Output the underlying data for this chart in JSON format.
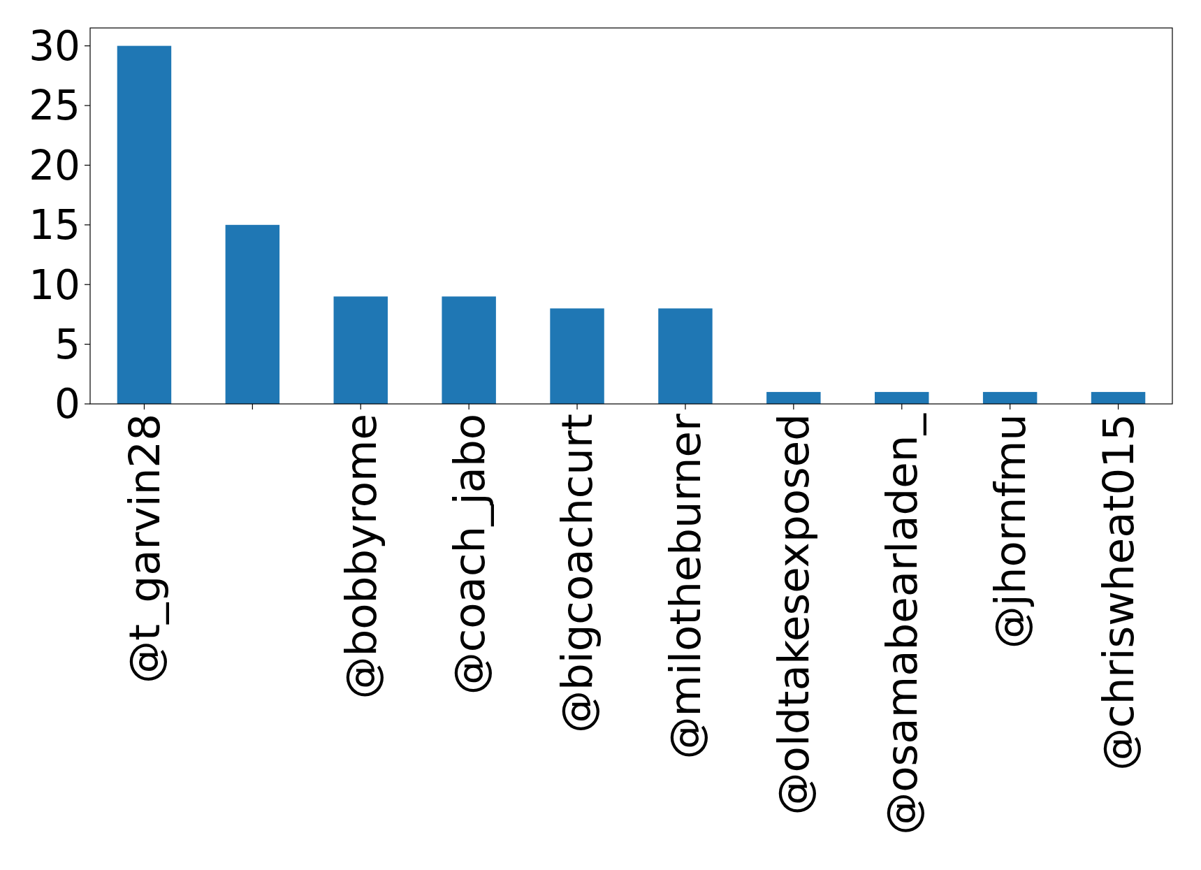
{
  "chart_data": {
    "type": "bar",
    "categories": [
      "@t_garvin28",
      null,
      "@bobbyrome",
      "@coach_jabo",
      "@bigcoachcurt",
      "@milotheburner",
      "@oldtakesexposed",
      "@osamabearladen_",
      "@jhornfmu",
      "@chriswheat015"
    ],
    "values": [
      30,
      15,
      9,
      9,
      8,
      8,
      1,
      1,
      1,
      1
    ],
    "color": "#1f77b4",
    "ylim": [
      0,
      31.5
    ],
    "yticks": [
      0,
      5,
      10,
      15,
      20,
      25,
      30
    ],
    "grid": false
  }
}
